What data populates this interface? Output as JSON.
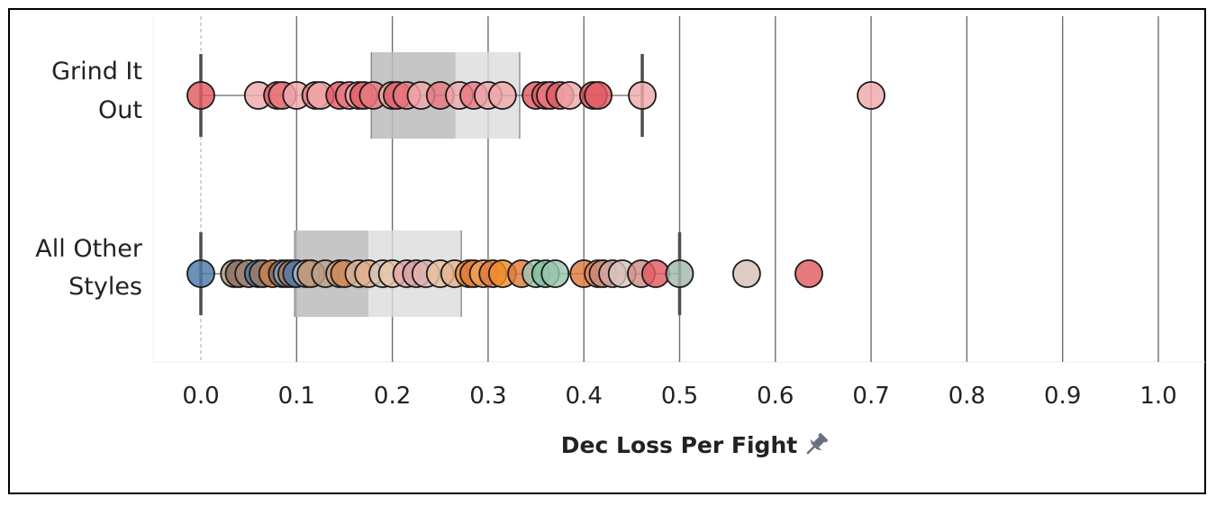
{
  "chart_data": {
    "type": "scatter",
    "subtype": "box-and-dot plot",
    "xlabel": "Dec Loss Per Fight",
    "xlim": [
      0.0,
      1.0
    ],
    "xticks": [
      "0.0",
      "0.1",
      "0.2",
      "0.3",
      "0.4",
      "0.5",
      "0.6",
      "0.7",
      "0.8",
      "0.9",
      "1.0"
    ],
    "grid": "vertical lines at each tick",
    "axis_pin_icon": "pin-icon",
    "series": [
      {
        "category_lines": [
          "Grind It",
          "Out"
        ],
        "box": {
          "whisker_low": 0.0,
          "q1": 0.178,
          "median": 0.266,
          "q3": 0.333,
          "whisker_high": 0.461
        },
        "points": [
          {
            "x": 0.0,
            "color": "#e05a62"
          },
          {
            "x": 0.06,
            "color": "#f0a8ab"
          },
          {
            "x": 0.08,
            "color": "#e05a62"
          },
          {
            "x": 0.085,
            "color": "#e87a80"
          },
          {
            "x": 0.1,
            "color": "#f0a8ab"
          },
          {
            "x": 0.12,
            "color": "#e87a80"
          },
          {
            "x": 0.125,
            "color": "#f0a8ab"
          },
          {
            "x": 0.145,
            "color": "#e05a62"
          },
          {
            "x": 0.155,
            "color": "#e87a80"
          },
          {
            "x": 0.165,
            "color": "#f0a8ab"
          },
          {
            "x": 0.17,
            "color": "#e05a62"
          },
          {
            "x": 0.18,
            "color": "#e87a80"
          },
          {
            "x": 0.2,
            "color": "#f0a8ab"
          },
          {
            "x": 0.205,
            "color": "#e05a62"
          },
          {
            "x": 0.215,
            "color": "#e87a80"
          },
          {
            "x": 0.23,
            "color": "#f0a8ab"
          },
          {
            "x": 0.25,
            "color": "#e87a80"
          },
          {
            "x": 0.27,
            "color": "#f0a8ab"
          },
          {
            "x": 0.285,
            "color": "#e87a80"
          },
          {
            "x": 0.3,
            "color": "#f0a8ab"
          },
          {
            "x": 0.315,
            "color": "#f0a8ab"
          },
          {
            "x": 0.35,
            "color": "#e05a62"
          },
          {
            "x": 0.36,
            "color": "#e05a62"
          },
          {
            "x": 0.365,
            "color": "#e87a80"
          },
          {
            "x": 0.375,
            "color": "#e05a62"
          },
          {
            "x": 0.385,
            "color": "#f0a8ab"
          },
          {
            "x": 0.41,
            "color": "#e05a62"
          },
          {
            "x": 0.415,
            "color": "#e05a62"
          },
          {
            "x": 0.461,
            "color": "#f0a8ab"
          },
          {
            "x": 0.7,
            "color": "#f0a8ab"
          }
        ]
      },
      {
        "category_lines": [
          "All Other",
          "Styles"
        ],
        "box": {
          "whisker_low": 0.0,
          "q1": 0.098,
          "median": 0.175,
          "q3": 0.272,
          "whisker_high": 0.5
        },
        "points": [
          {
            "x": 0.0,
            "color": "#4e79a7"
          },
          {
            "x": 0.035,
            "color": "#b09a8a"
          },
          {
            "x": 0.04,
            "color": "#8c6d5c"
          },
          {
            "x": 0.05,
            "color": "#a0887a"
          },
          {
            "x": 0.06,
            "color": "#4e79a7"
          },
          {
            "x": 0.065,
            "color": "#9c7a66"
          },
          {
            "x": 0.075,
            "color": "#c8804e"
          },
          {
            "x": 0.085,
            "color": "#8c6d5c"
          },
          {
            "x": 0.09,
            "color": "#7f9fc2"
          },
          {
            "x": 0.095,
            "color": "#b07c5a"
          },
          {
            "x": 0.1,
            "color": "#4e79a7"
          },
          {
            "x": 0.11,
            "color": "#a8b8cc"
          },
          {
            "x": 0.115,
            "color": "#c8966e"
          },
          {
            "x": 0.13,
            "color": "#bba08c"
          },
          {
            "x": 0.145,
            "color": "#d4a07a"
          },
          {
            "x": 0.15,
            "color": "#c98a5a"
          },
          {
            "x": 0.165,
            "color": "#d8b49a"
          },
          {
            "x": 0.175,
            "color": "#e2b08c"
          },
          {
            "x": 0.19,
            "color": "#d7c4b8"
          },
          {
            "x": 0.2,
            "color": "#e8c7a6"
          },
          {
            "x": 0.215,
            "color": "#e7a8a8"
          },
          {
            "x": 0.225,
            "color": "#d9a3a3"
          },
          {
            "x": 0.235,
            "color": "#e2b3b0"
          },
          {
            "x": 0.25,
            "color": "#e9c29d"
          },
          {
            "x": 0.265,
            "color": "#e7b391"
          },
          {
            "x": 0.28,
            "color": "#f28e2b"
          },
          {
            "x": 0.285,
            "color": "#e07a3a"
          },
          {
            "x": 0.295,
            "color": "#f5a05a"
          },
          {
            "x": 0.305,
            "color": "#e07a3a"
          },
          {
            "x": 0.315,
            "color": "#f28e2b"
          },
          {
            "x": 0.335,
            "color": "#e07a3a"
          },
          {
            "x": 0.35,
            "color": "#9fc8b0"
          },
          {
            "x": 0.36,
            "color": "#7fbf9f"
          },
          {
            "x": 0.37,
            "color": "#9cc5b0"
          },
          {
            "x": 0.4,
            "color": "#e07a3a"
          },
          {
            "x": 0.415,
            "color": "#e8865a"
          },
          {
            "x": 0.42,
            "color": "#c98a7a"
          },
          {
            "x": 0.43,
            "color": "#d4a7a3"
          },
          {
            "x": 0.44,
            "color": "#d9c4bb"
          },
          {
            "x": 0.46,
            "color": "#d18c8a"
          },
          {
            "x": 0.475,
            "color": "#e05a62"
          },
          {
            "x": 0.5,
            "color": "#a3b8ad"
          },
          {
            "x": 0.57,
            "color": "#d8c2b8"
          },
          {
            "x": 0.635,
            "color": "#e05a62"
          }
        ]
      }
    ]
  }
}
